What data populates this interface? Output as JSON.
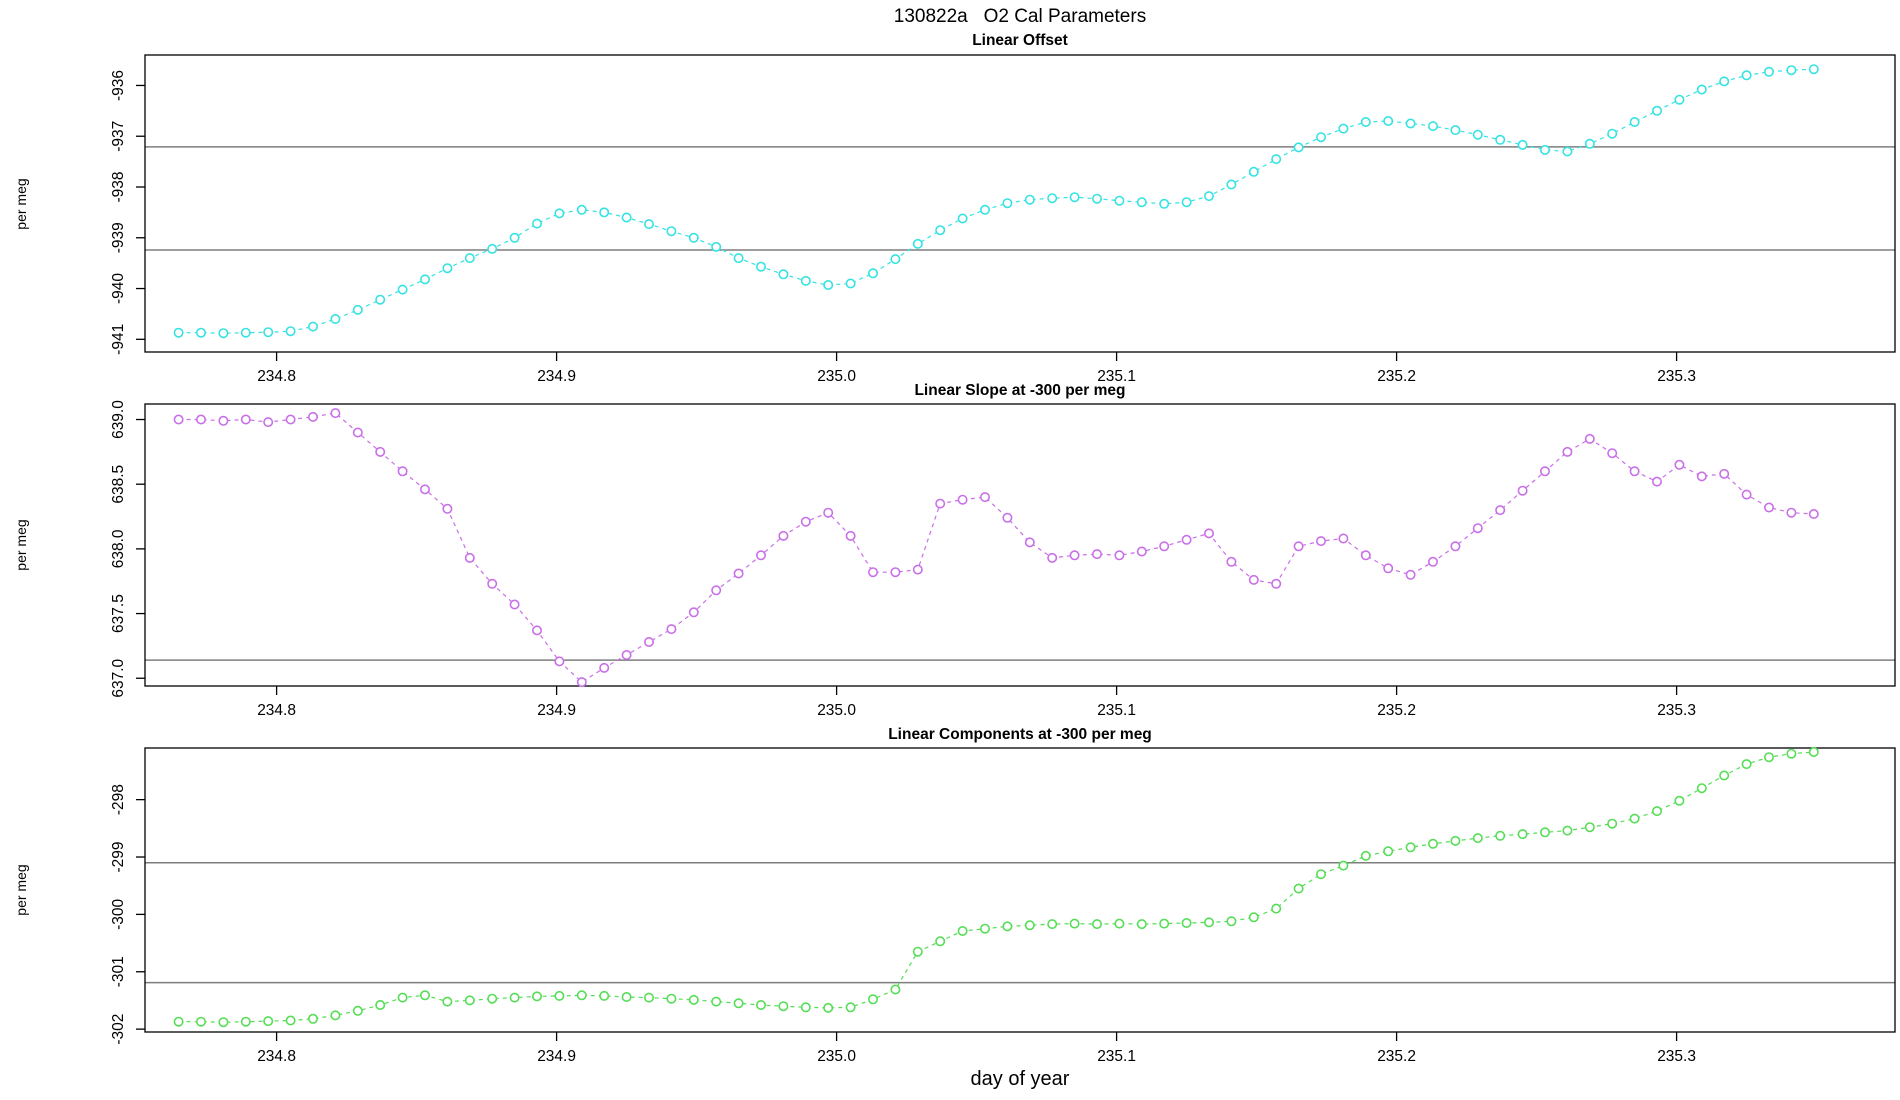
{
  "page_title": "130822a   O2 Cal Parameters",
  "layout_labels": {
    "xlabel": "day of year"
  },
  "reference_line_color": "#7e7e7e",
  "chart_data": [
    {
      "type": "scatter",
      "title": "Linear Offset",
      "ylabel": "per meg",
      "color": "#35E2E2",
      "marker": "open-circle",
      "line_style": "dashed",
      "xlim": [
        234.753,
        235.378
      ],
      "ylim": [
        -941.25,
        -935.4
      ],
      "xticks": [
        234.8,
        234.9,
        235.0,
        235.1,
        235.2,
        235.3
      ],
      "xtick_labels": [
        "234.8",
        "234.9",
        "235.0",
        "235.1",
        "235.2",
        "235.3"
      ],
      "yticks": [
        -941,
        -940,
        -939,
        -938,
        -937,
        -936
      ],
      "ytick_labels": [
        "-941",
        "-940",
        "-939",
        "-938",
        "-937",
        "-936"
      ],
      "hlines": [
        -937.21,
        -939.24
      ],
      "x_start": 234.765,
      "x_step": 0.008,
      "values": [
        -940.87,
        -940.87,
        -940.88,
        -940.87,
        -940.86,
        -940.84,
        -940.75,
        -940.6,
        -940.42,
        -940.22,
        -940.02,
        -939.82,
        -939.6,
        -939.4,
        -939.22,
        -939.0,
        -938.72,
        -938.52,
        -938.45,
        -938.5,
        -938.6,
        -938.73,
        -938.87,
        -939.0,
        -939.18,
        -939.4,
        -939.57,
        -939.72,
        -939.85,
        -939.93,
        -939.9,
        -939.7,
        -939.42,
        -939.12,
        -938.85,
        -938.62,
        -938.45,
        -938.32,
        -938.25,
        -938.22,
        -938.2,
        -938.23,
        -938.27,
        -938.3,
        -938.33,
        -938.3,
        -938.18,
        -937.95,
        -937.7,
        -937.45,
        -937.22,
        -937.02,
        -936.85,
        -936.72,
        -936.7,
        -936.75,
        -936.8,
        -936.88,
        -936.97,
        -937.07,
        -937.17,
        -937.27,
        -937.3,
        -937.15,
        -936.95,
        -936.72,
        -936.5,
        -936.28,
        -936.08,
        -935.92,
        -935.8,
        -935.73,
        -935.7,
        -935.68
      ]
    },
    {
      "type": "scatter",
      "title": "Linear Slope at -300 per meg",
      "ylabel": "per meg",
      "color": "#C96FE8",
      "marker": "open-circle",
      "line_style": "dashed",
      "xlim": [
        234.753,
        235.378
      ],
      "ylim": [
        636.94,
        639.12
      ],
      "xticks": [
        234.8,
        234.9,
        235.0,
        235.1,
        235.2,
        235.3
      ],
      "xtick_labels": [
        "234.8",
        "234.9",
        "235.0",
        "235.1",
        "235.2",
        "235.3"
      ],
      "yticks": [
        637.0,
        637.5,
        638.0,
        638.5,
        639.0
      ],
      "ytick_labels": [
        "637.0",
        "637.5",
        "638.0",
        "638.5",
        "639.0"
      ],
      "hlines": [
        637.14
      ],
      "x_start": 234.765,
      "x_step": 0.008,
      "values": [
        639.0,
        639.0,
        638.99,
        639.0,
        638.98,
        639.0,
        639.02,
        639.05,
        638.9,
        638.75,
        638.6,
        638.46,
        638.31,
        637.93,
        637.73,
        637.57,
        637.37,
        637.13,
        636.97,
        637.08,
        637.18,
        637.28,
        637.38,
        637.51,
        637.68,
        637.81,
        637.95,
        638.1,
        638.21,
        638.28,
        638.1,
        637.82,
        637.82,
        637.84,
        638.35,
        638.38,
        638.4,
        638.24,
        638.05,
        637.93,
        637.95,
        637.96,
        637.95,
        637.98,
        638.02,
        638.07,
        638.12,
        637.9,
        637.76,
        637.73,
        638.02,
        638.06,
        638.08,
        637.95,
        637.85,
        637.8,
        637.9,
        638.02,
        638.16,
        638.3,
        638.45,
        638.6,
        638.75,
        638.85,
        638.74,
        638.6,
        638.52,
        638.65,
        638.56,
        638.58,
        638.42,
        638.32,
        638.28,
        638.27
      ]
    },
    {
      "type": "scatter",
      "title": "Linear Components at -300 per meg",
      "ylabel": "per meg",
      "color": "#55DD55",
      "marker": "open-circle",
      "line_style": "dashed",
      "xlim": [
        234.753,
        235.378
      ],
      "ylim": [
        -302.05,
        -297.1
      ],
      "xticks": [
        234.8,
        234.9,
        235.0,
        235.1,
        235.2,
        235.3
      ],
      "xtick_labels": [
        "234.8",
        "234.9",
        "235.0",
        "235.1",
        "235.2",
        "235.3"
      ],
      "yticks": [
        -302,
        -301,
        -300,
        -299,
        -298
      ],
      "ytick_labels": [
        "-302",
        "-301",
        "-300",
        "-299",
        "-298"
      ],
      "hlines": [
        -299.1,
        -301.19
      ],
      "x_start": 234.765,
      "x_step": 0.008,
      "values": [
        -301.87,
        -301.87,
        -301.88,
        -301.87,
        -301.86,
        -301.85,
        -301.82,
        -301.76,
        -301.68,
        -301.58,
        -301.45,
        -301.41,
        -301.52,
        -301.5,
        -301.47,
        -301.45,
        -301.43,
        -301.42,
        -301.41,
        -301.42,
        -301.44,
        -301.45,
        -301.47,
        -301.49,
        -301.52,
        -301.55,
        -301.58,
        -301.6,
        -301.62,
        -301.63,
        -301.62,
        -301.48,
        -301.31,
        -300.65,
        -300.47,
        -300.29,
        -300.25,
        -300.21,
        -300.19,
        -300.17,
        -300.16,
        -300.17,
        -300.16,
        -300.17,
        -300.16,
        -300.15,
        -300.14,
        -300.12,
        -300.05,
        -299.9,
        -299.55,
        -299.3,
        -299.15,
        -298.98,
        -298.9,
        -298.83,
        -298.77,
        -298.72,
        -298.67,
        -298.63,
        -298.6,
        -298.57,
        -298.54,
        -298.48,
        -298.42,
        -298.33,
        -298.2,
        -298.02,
        -297.8,
        -297.58,
        -297.38,
        -297.26,
        -297.2,
        -297.17
      ]
    }
  ]
}
